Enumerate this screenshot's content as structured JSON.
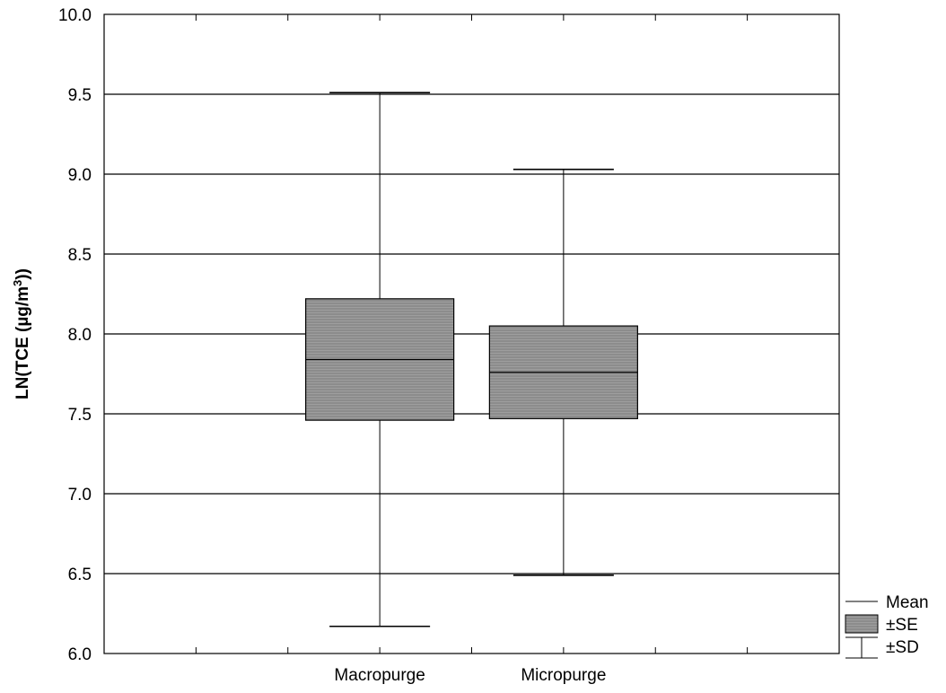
{
  "chart_data": {
    "type": "box",
    "ylabel_main": "LN(TCE (µg/m",
    "ylabel_sup": "3",
    "ylabel_end": "))",
    "ylim": [
      6.0,
      10.0
    ],
    "yticks": [
      "6.0",
      "6.5",
      "7.0",
      "7.5",
      "8.0",
      "8.5",
      "9.0",
      "9.5",
      "10.0"
    ],
    "grid": true,
    "categories": [
      "Macropurge",
      "Micropurge"
    ],
    "series": [
      {
        "mean": 7.84,
        "se_low": 7.46,
        "se_high": 8.22,
        "sd_low": 6.17,
        "sd_high": 9.51
      },
      {
        "mean": 7.76,
        "se_low": 7.47,
        "se_high": 8.05,
        "sd_low": 6.49,
        "sd_high": 9.03
      }
    ],
    "legend": {
      "placement": "bottom-right",
      "mean_label": "Mean",
      "se_label": "±SE",
      "sd_label": "±SD"
    },
    "box_color": "#8c8c8c"
  }
}
